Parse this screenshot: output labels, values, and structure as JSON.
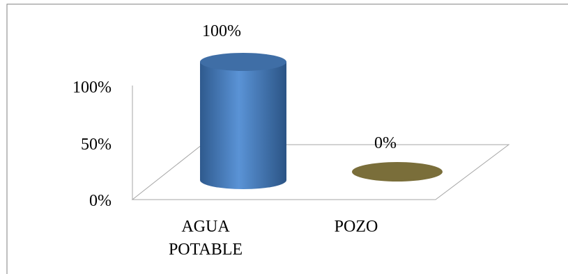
{
  "chart_data": {
    "type": "bar",
    "style": "3d-cylinder",
    "categories": [
      [
        "AGUA",
        "POTABLE"
      ],
      [
        "POZO"
      ]
    ],
    "values": [
      100,
      0
    ],
    "data_labels": [
      "100%",
      "0%"
    ],
    "yticks": [
      "100%",
      "50%",
      "0%"
    ],
    "ylim": [
      0,
      100
    ],
    "grid": false,
    "legend": "none",
    "colors": {
      "bar_main": "#4f81bd",
      "bar_light": "#6fa0dc",
      "bar_dark": "#345c8c",
      "bar_top": "#3f6ea6",
      "series2": "#7a6e3a",
      "axis": "#a6a6a6",
      "frame": "#7f7f7f"
    }
  }
}
